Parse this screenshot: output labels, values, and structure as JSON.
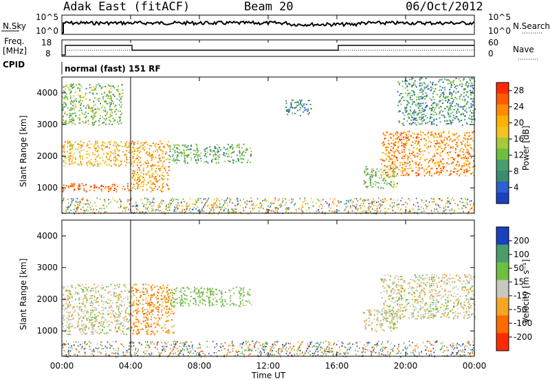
{
  "header": {
    "title": "Adak East (fitACF)",
    "beam": "Beam 20",
    "date": "06/Oct/2012"
  },
  "top_panel": {
    "left_label": "N.Sky",
    "right_label": "N.Search",
    "ticks_left": [
      "10^5",
      "10^0"
    ],
    "ticks_right": [
      "10^5",
      "10^0"
    ]
  },
  "freq_panel": {
    "left_label_1": "Freq.",
    "left_label_2": "[MHz]",
    "right_label": "Nave",
    "ticks_left": [
      "18",
      "8"
    ],
    "ticks_right": [
      "60",
      "0"
    ]
  },
  "cpid": {
    "label": "CPID",
    "value": "normal (fast) 151 RF"
  },
  "power_panel": {
    "ylabel": "Slant Range [km]",
    "cbar_label": "Power [dB]",
    "cbar_ticks": [
      "28",
      "24",
      "20",
      "16",
      "12",
      "8",
      "4"
    ],
    "colors": {
      "red": "#ff2a00",
      "orange": "#ff8c00",
      "yellow": "#f6c21f",
      "green": "#6fbf3f",
      "teal": "#3a8c6e",
      "blue": "#1a3fbf"
    }
  },
  "velocity_panel": {
    "ylabel": "Slant Range [km]",
    "cbar_label": "Velocity [m s⁻¹]",
    "cbar_ticks": [
      "200",
      "100",
      "50",
      "15",
      "-15",
      "-50",
      "-100",
      "-200"
    ],
    "colors": {
      "gray": "#c8c8c0",
      "orange": "#f5a623",
      "green": "#6fbf3f",
      "blue": "#1a3fbf",
      "red": "#ff2a00"
    }
  },
  "xaxis": {
    "label": "Time UT",
    "ticks": [
      "00:00",
      "04:00",
      "08:00",
      "12:00",
      "16:00",
      "20:00",
      "00:00"
    ]
  },
  "chart_data": [
    {
      "type": "heatmap",
      "panel": "power",
      "xlabel": "Time UT",
      "ylabel": "Slant Range [km]",
      "xlim_hours": [
        0,
        24
      ],
      "ylim": [
        200,
        4500
      ],
      "yticks": [
        1000,
        2000,
        3000,
        4000
      ],
      "colorbar": {
        "label": "Power [dB]",
        "range": [
          0,
          30
        ],
        "ticks": [
          4,
          8,
          12,
          16,
          20,
          24,
          28
        ]
      },
      "regions": [
        {
          "t": [
            0,
            4
          ],
          "r": [
            900,
            1150
          ],
          "level": 28
        },
        {
          "t": [
            0,
            4
          ],
          "r": [
            1700,
            2500
          ],
          "level": 20
        },
        {
          "t": [
            0,
            3.5
          ],
          "r": [
            3000,
            4300
          ],
          "level": 12
        },
        {
          "t": [
            4,
            6.2
          ],
          "r": [
            900,
            2500
          ],
          "level": 22
        },
        {
          "t": [
            6.2,
            11
          ],
          "r": [
            1800,
            2400
          ],
          "level": 10
        },
        {
          "t": [
            13,
            14.5
          ],
          "r": [
            3300,
            3800
          ],
          "level": 6
        },
        {
          "t": [
            17.5,
            19.5
          ],
          "r": [
            1000,
            1700
          ],
          "level": 12
        },
        {
          "t": [
            18.5,
            24
          ],
          "r": [
            1400,
            2800
          ],
          "level": 24
        },
        {
          "t": [
            19.5,
            24
          ],
          "r": [
            3000,
            4500
          ],
          "level": 8
        }
      ]
    },
    {
      "type": "heatmap",
      "panel": "velocity",
      "xlabel": "Time UT",
      "ylabel": "Slant Range [km]",
      "xlim_hours": [
        0,
        24
      ],
      "ylim": [
        200,
        4500
      ],
      "yticks": [
        1000,
        2000,
        3000,
        4000
      ],
      "colorbar": {
        "label": "Velocity [m s⁻¹]",
        "range": [
          -250,
          250
        ],
        "ticks": [
          200,
          100,
          50,
          15,
          -15,
          -50,
          -100,
          -200
        ]
      },
      "regions": [
        {
          "t": [
            0,
            4
          ],
          "r": [
            900,
            2500
          ],
          "level": 0
        },
        {
          "t": [
            4,
            6.5
          ],
          "r": [
            900,
            2500
          ],
          "level": -50
        },
        {
          "t": [
            6.2,
            11
          ],
          "r": [
            1800,
            2400
          ],
          "level": 30
        },
        {
          "t": [
            17.5,
            19.5
          ],
          "r": [
            1000,
            1700
          ],
          "level": 0
        },
        {
          "t": [
            18.5,
            24
          ],
          "r": [
            1400,
            2800
          ],
          "level": 0
        }
      ]
    }
  ]
}
